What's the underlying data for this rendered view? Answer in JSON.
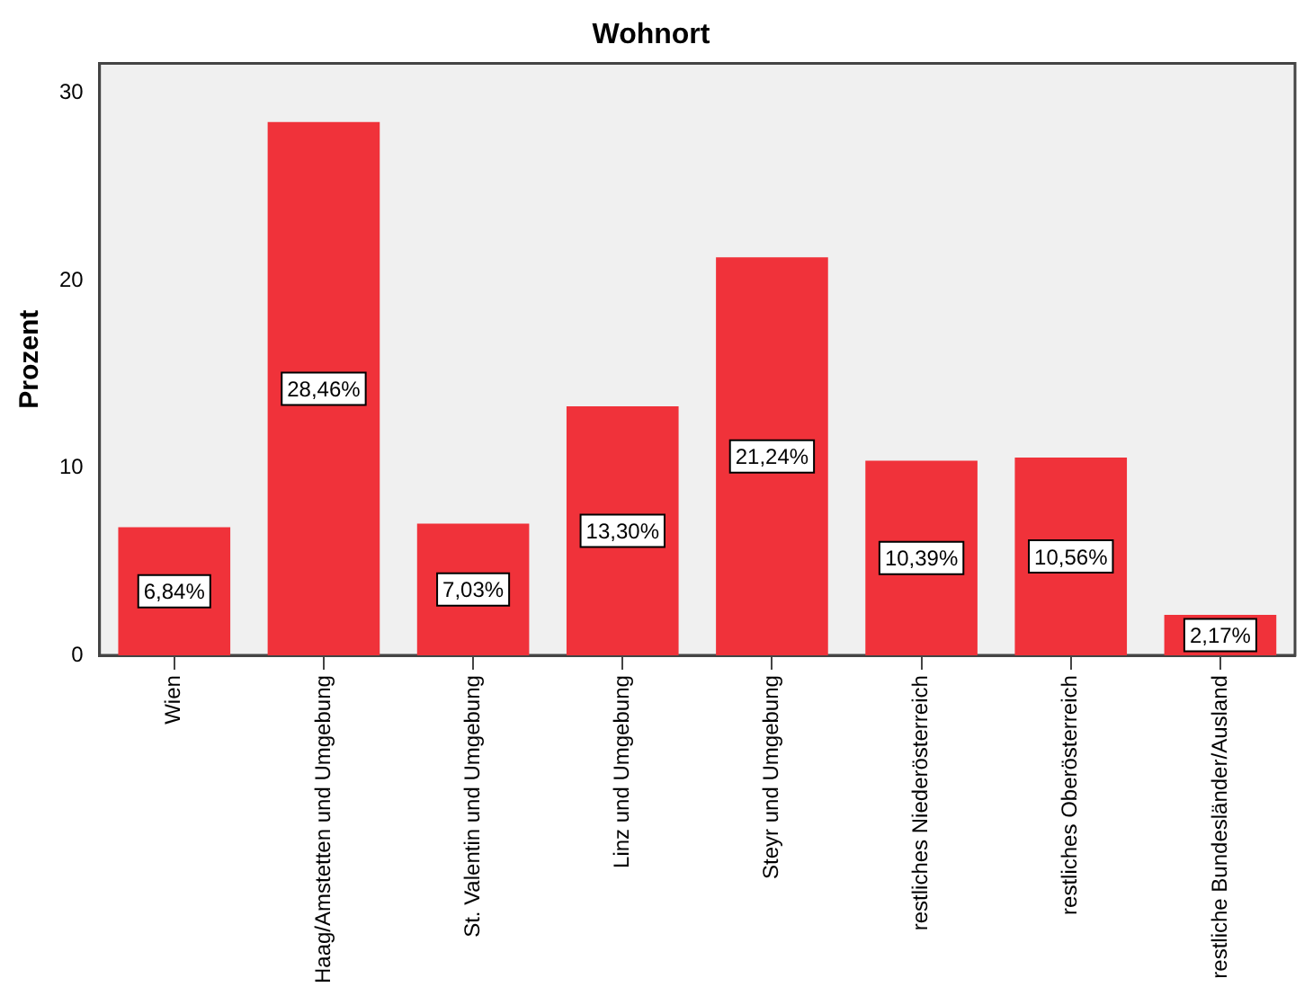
{
  "chart_data": {
    "type": "bar",
    "title": "Wohnort",
    "ylabel": "Prozent",
    "categories": [
      "Wien",
      "Haag/Amstetten und Umgebung",
      "St. Valentin und Umgebung",
      "Linz und Umgebung",
      "Steyr und Umgebung",
      "restliches Niederösterreich",
      "restliches Oberösterreich",
      "restliche Bundesländer/Ausland"
    ],
    "values": [
      6.84,
      28.46,
      7.03,
      13.3,
      21.24,
      10.39,
      10.56,
      2.17
    ],
    "value_labels": [
      "6,84%",
      "28,46%",
      "7,03%",
      "13,30%",
      "21,24%",
      "10,39%",
      "10,56%",
      "2,17%"
    ],
    "color": "#f0323a",
    "ylim": [
      0,
      31.6
    ],
    "yticks": [
      0,
      10,
      20,
      30
    ],
    "grid": false,
    "legend": false
  }
}
